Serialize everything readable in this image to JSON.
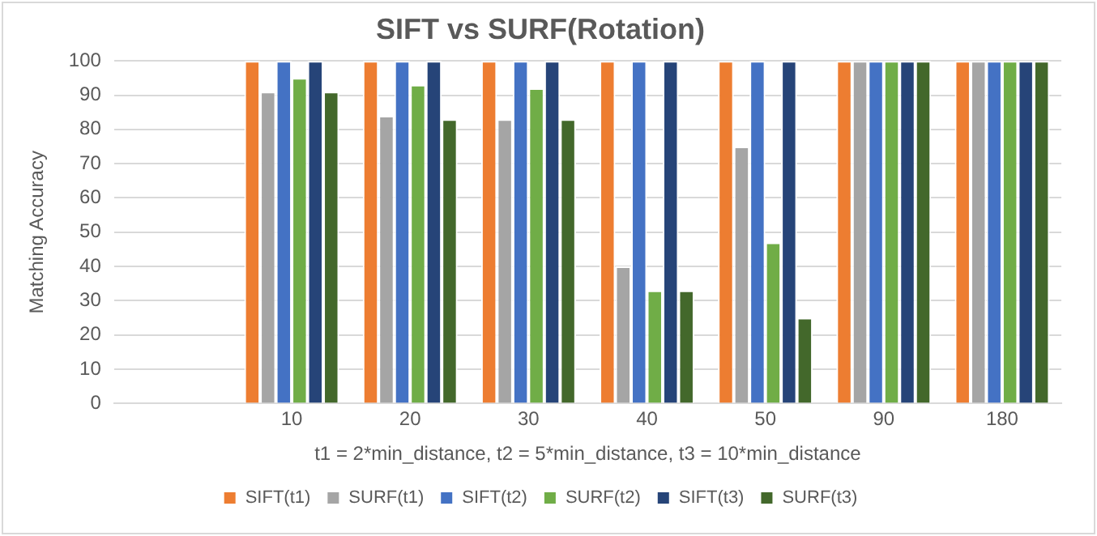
{
  "chart_data": {
    "type": "bar",
    "title": "SIFT vs SURF(Rotation)",
    "xlabel": "t1 = 2*min_distance, t2 = 5*min_distance, t3 = 10*min_distance",
    "ylabel": "Matching Accuracy",
    "categories": [
      null,
      "10",
      "20",
      "30",
      "40",
      "50",
      "90",
      "180"
    ],
    "series": [
      {
        "name": "SIFT(t1)",
        "color": "#ed7d31",
        "values": [
          null,
          100,
          100,
          100,
          100,
          100,
          100,
          100
        ]
      },
      {
        "name": "SURF(t1)",
        "color": "#a5a5a5",
        "values": [
          null,
          91,
          84,
          83,
          40,
          75,
          100,
          100
        ]
      },
      {
        "name": "SIFT(t2)",
        "color": "#4472c4",
        "values": [
          null,
          100,
          100,
          100,
          100,
          100,
          100,
          100
        ]
      },
      {
        "name": "SURF(t2)",
        "color": "#70ad47",
        "values": [
          null,
          95,
          93,
          92,
          33,
          47,
          100,
          100
        ]
      },
      {
        "name": "SIFT(t3)",
        "color": "#264478",
        "values": [
          null,
          100,
          100,
          100,
          100,
          100,
          100,
          100
        ]
      },
      {
        "name": "SURF(t3)",
        "color": "#43682b",
        "values": [
          null,
          91,
          83,
          83,
          33,
          25,
          100,
          100
        ]
      }
    ],
    "ylim": [
      0,
      100
    ],
    "yticks": [
      0,
      10,
      20,
      30,
      40,
      50,
      60,
      70,
      80,
      90,
      100
    ],
    "grid": "y",
    "legend": "bottom"
  }
}
